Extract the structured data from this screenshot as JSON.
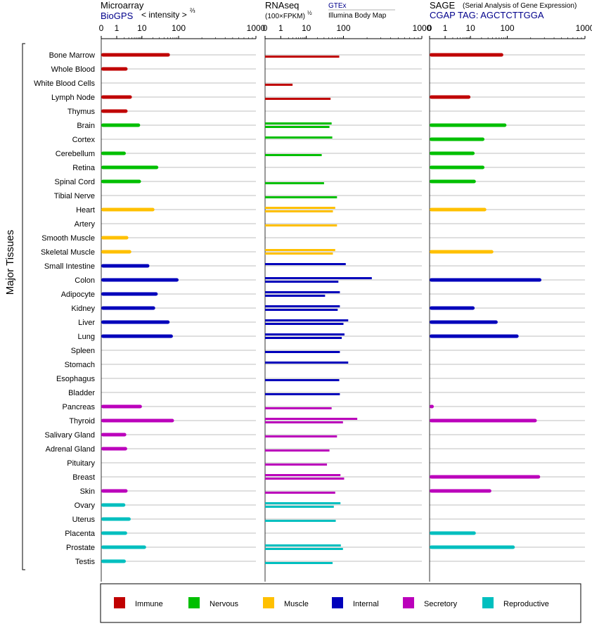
{
  "side_label": "Major Tissues",
  "panels": {
    "microarray": {
      "title": "Microarray",
      "source": "BioGPS",
      "scale_label": "< intensity >",
      "scale_exponent": "⅔"
    },
    "rnaseq": {
      "title": "RNAseq",
      "unit": "(100×FPKM)",
      "unit_exponent": "½",
      "source_1": "GTEx",
      "source_2": "Illumina Body Map"
    },
    "sage": {
      "title": "SAGE",
      "subtitle": "(Serial Analysis of Gene Expression)",
      "tag": "CGAP TAG: AGCTCTTGGA"
    }
  },
  "axis_ticks": [
    "0",
    "1",
    "10",
    "100",
    "1000"
  ],
  "colors": {
    "Immune": "#c00000",
    "Nervous": "#00bf00",
    "Muscle": "#ffc000",
    "Internal": "#0000bb",
    "Secretory": "#bb00bb",
    "Reproductive": "#00bfbf"
  },
  "legend": [
    "Immune",
    "Nervous",
    "Muscle",
    "Internal",
    "Secretory",
    "Reproductive"
  ],
  "chart_data": {
    "type": "bar",
    "scale": "cube-root-like (0,1,10,100,1000)",
    "xlim": [
      0,
      1000
    ],
    "categories": [
      "Bone Marrow",
      "Whole Blood",
      "White Blood Cells",
      "Lymph Node",
      "Thymus",
      "Brain",
      "Cortex",
      "Cerebellum",
      "Retina",
      "Spinal Cord",
      "Tibial Nerve",
      "Heart",
      "Artery",
      "Smooth Muscle",
      "Skeletal Muscle",
      "Small Intestine",
      "Colon",
      "Adipocyte",
      "Kidney",
      "Liver",
      "Lung",
      "Spleen",
      "Stomach",
      "Esophagus",
      "Bladder",
      "Pancreas",
      "Thyroid",
      "Salivary Gland",
      "Adrenal Gland",
      "Pituitary",
      "Breast",
      "Skin",
      "Ovary",
      "Uterus",
      "Placenta",
      "Prostate",
      "Testis"
    ],
    "groups": [
      "Immune",
      "Immune",
      "Immune",
      "Immune",
      "Immune",
      "Nervous",
      "Nervous",
      "Nervous",
      "Nervous",
      "Nervous",
      "Nervous",
      "Muscle",
      "Muscle",
      "Muscle",
      "Muscle",
      "Internal",
      "Internal",
      "Internal",
      "Internal",
      "Internal",
      "Internal",
      "Internal",
      "Internal",
      "Internal",
      "Internal",
      "Secretory",
      "Secretory",
      "Secretory",
      "Secretory",
      "Secretory",
      "Secretory",
      "Secretory",
      "Reproductive",
      "Reproductive",
      "Reproductive",
      "Reproductive",
      "Reproductive"
    ],
    "series": [
      {
        "name": "Microarray",
        "values": [
          58,
          2.7,
          null,
          4,
          2.7,
          8.5,
          null,
          2.3,
          28,
          9.2,
          null,
          22,
          null,
          2.9,
          3.8,
          16,
          100,
          27,
          23,
          57,
          70,
          null,
          null,
          null,
          null,
          10,
          75,
          2.4,
          2.6,
          null,
          null,
          2.7,
          2.2,
          3.6,
          2.6,
          13,
          2.3
        ]
      },
      {
        "name": "GTEx",
        "values": [
          null,
          null,
          null,
          null,
          null,
          48,
          50,
          null,
          null,
          null,
          null,
          60,
          null,
          null,
          60,
          107,
          230,
          80,
          80,
          115,
          103,
          null,
          115,
          null,
          null,
          null,
          150,
          null,
          null,
          null,
          83,
          null,
          83,
          null,
          null,
          85,
          null
        ]
      },
      {
        "name": "Illumina Body Map",
        "values": [
          77,
          null,
          2.9,
          45,
          null,
          42,
          null,
          26,
          null,
          30,
          67,
          52,
          67,
          null,
          52,
          null,
          73,
          32,
          70,
          100,
          90,
          80,
          null,
          77,
          80,
          48,
          97,
          67,
          42,
          36,
          102,
          60,
          55,
          62,
          null,
          97,
          51
        ]
      },
      {
        "name": "SAGE",
        "values": [
          78,
          null,
          null,
          10,
          null,
          95,
          24,
          13,
          24,
          14,
          null,
          27,
          null,
          null,
          42,
          null,
          275,
          null,
          13,
          55,
          140,
          null,
          null,
          null,
          null,
          0.02,
          240,
          null,
          null,
          null,
          265,
          37,
          null,
          null,
          14,
          125,
          null
        ]
      }
    ]
  }
}
